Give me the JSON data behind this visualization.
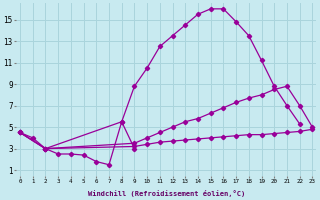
{
  "xlabel": "Windchill (Refroidissement éolien,°C)",
  "background_color": "#c8eaf0",
  "grid_color": "#aad4dc",
  "line_color": "#990099",
  "xticks": [
    0,
    1,
    2,
    3,
    4,
    5,
    6,
    7,
    8,
    9,
    10,
    11,
    12,
    13,
    14,
    15,
    16,
    17,
    18,
    19,
    20,
    21,
    22,
    23
  ],
  "yticks": [
    1,
    3,
    5,
    7,
    9,
    11,
    13,
    15
  ],
  "series_data": {
    "line1_x": [
      0,
      1,
      2,
      3,
      4,
      5,
      6,
      7,
      8,
      9
    ],
    "line1_y": [
      4.5,
      4.0,
      3.0,
      2.5,
      2.5,
      2.4,
      1.8,
      1.5,
      5.5,
      3.0
    ],
    "line2_x": [
      0,
      2,
      8,
      9,
      10,
      11,
      12,
      13,
      14,
      15,
      16,
      17,
      18,
      19,
      20,
      21,
      22
    ],
    "line2_y": [
      4.5,
      3.0,
      5.5,
      8.8,
      10.5,
      12.5,
      13.5,
      14.5,
      15.5,
      16.0,
      16.0,
      14.8,
      13.5,
      11.2,
      8.8,
      7.0,
      5.3
    ],
    "line3_x": [
      0,
      2,
      9,
      10,
      11,
      12,
      13,
      14,
      15,
      16,
      17,
      18,
      19,
      20,
      21,
      22,
      23
    ],
    "line3_y": [
      4.5,
      3.0,
      3.5,
      4.0,
      4.5,
      5.0,
      5.5,
      5.8,
      6.3,
      6.8,
      7.3,
      7.7,
      8.0,
      8.5,
      8.8,
      7.0,
      5.0
    ],
    "line4_x": [
      0,
      2,
      9,
      10,
      11,
      12,
      13,
      14,
      15,
      16,
      17,
      18,
      19,
      20,
      21,
      22,
      23
    ],
    "line4_y": [
      4.5,
      3.0,
      3.2,
      3.4,
      3.6,
      3.7,
      3.8,
      3.9,
      4.0,
      4.1,
      4.2,
      4.3,
      4.3,
      4.4,
      4.5,
      4.6,
      4.8
    ]
  }
}
